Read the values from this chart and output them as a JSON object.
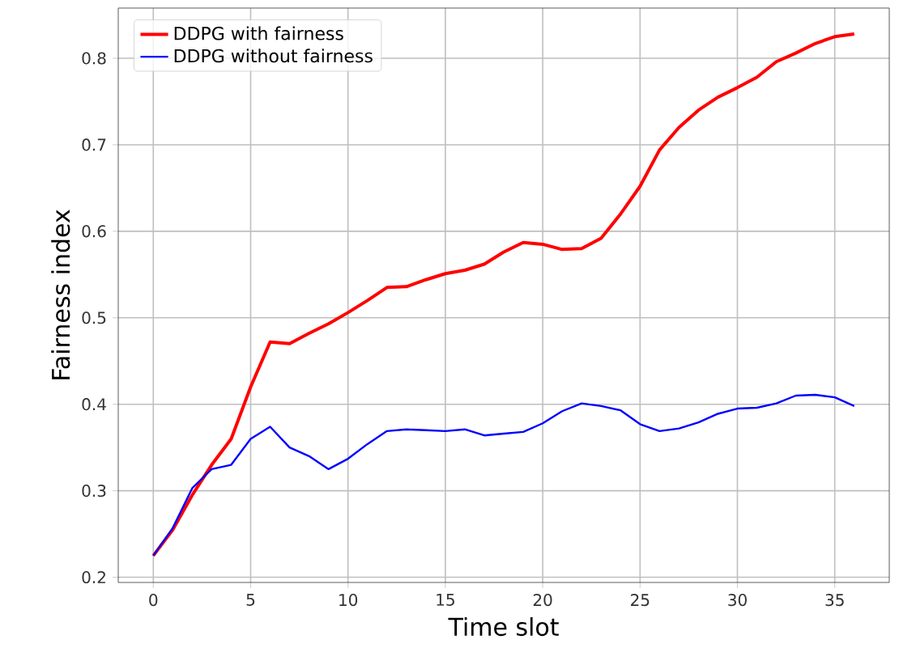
{
  "chart_data": {
    "type": "line",
    "xlabel": "Time slot",
    "ylabel": "Fairness index",
    "x": [
      0,
      1,
      2,
      3,
      4,
      5,
      6,
      7,
      8,
      9,
      10,
      11,
      12,
      13,
      14,
      15,
      16,
      17,
      18,
      19,
      20,
      21,
      22,
      23,
      24,
      25,
      26,
      27,
      28,
      29,
      30,
      31,
      32,
      33,
      34,
      35,
      36
    ],
    "series": [
      {
        "name": "DDPG with fairness",
        "color": "#ff0000",
        "values": [
          0.225,
          0.255,
          0.295,
          0.33,
          0.36,
          0.42,
          0.472,
          0.47,
          0.482,
          0.493,
          0.506,
          0.52,
          0.535,
          0.536,
          0.544,
          0.551,
          0.555,
          0.562,
          0.576,
          0.587,
          0.585,
          0.579,
          0.58,
          0.592,
          0.62,
          0.652,
          0.694,
          0.72,
          0.74,
          0.755,
          0.766,
          0.778,
          0.796,
          0.806,
          0.817,
          0.825,
          0.828
        ]
      },
      {
        "name": "DDPG without fairness",
        "color": "#0000ff",
        "values": [
          0.225,
          0.257,
          0.303,
          0.325,
          0.33,
          0.36,
          0.374,
          0.35,
          0.34,
          0.325,
          0.337,
          0.354,
          0.369,
          0.371,
          0.37,
          0.369,
          0.371,
          0.364,
          0.366,
          0.368,
          0.378,
          0.392,
          0.401,
          0.398,
          0.393,
          0.377,
          0.369,
          0.372,
          0.379,
          0.389,
          0.395,
          0.396,
          0.401,
          0.41,
          0.411,
          0.408,
          0.398
        ]
      }
    ],
    "xlim": [
      -1.8,
      37.8
    ],
    "ylim": [
      0.194,
      0.858
    ],
    "xticks": [
      0,
      5,
      10,
      15,
      20,
      25,
      30,
      35
    ],
    "yticks": [
      {
        "value": 0.2,
        "label": "0.2"
      },
      {
        "value": 0.3,
        "label": "0.3"
      },
      {
        "value": 0.4,
        "label": "0.4"
      },
      {
        "value": 0.5,
        "label": "0.5"
      },
      {
        "value": 0.6,
        "label": "0.6"
      },
      {
        "value": 0.7,
        "label": "0.7"
      },
      {
        "value": 0.8,
        "label": "0.8"
      }
    ],
    "grid": true,
    "legend": "top left",
    "marker": "none",
    "line_style": "solid"
  }
}
